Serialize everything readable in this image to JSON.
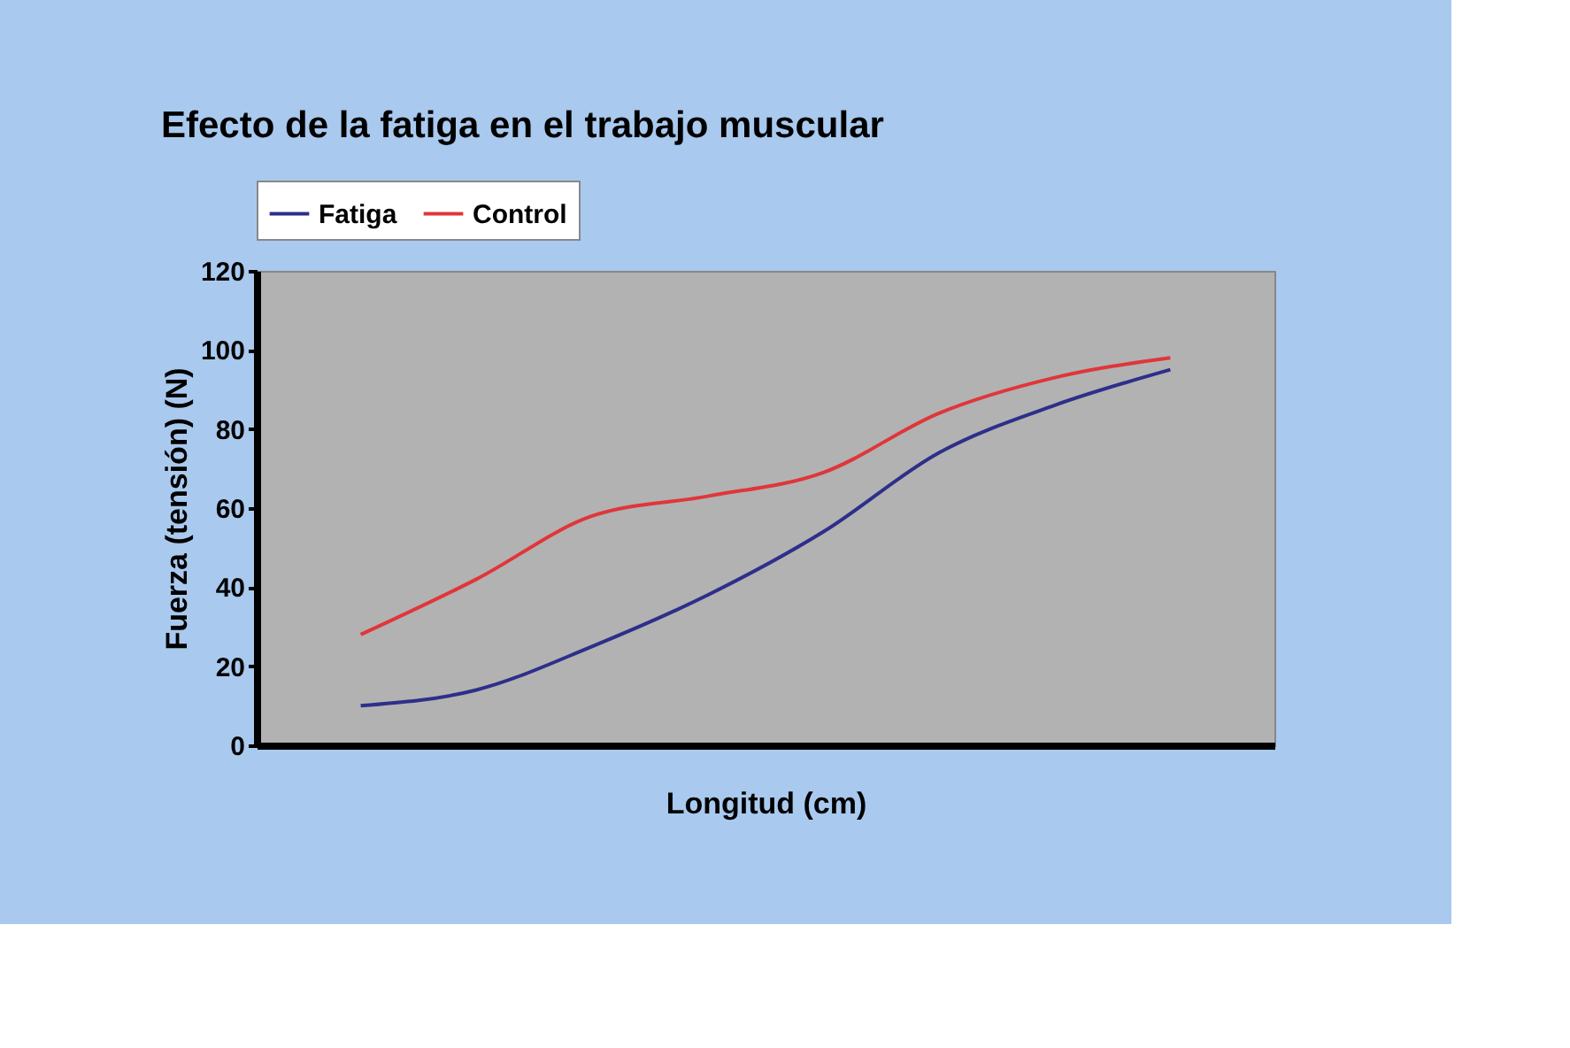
{
  "chart_data": {
    "type": "line",
    "title": "Efecto de la fatiga en el trabajo muscular",
    "xlabel": "Longitud (cm)",
    "ylabel": "Fuerza (tensión) (N)",
    "categories": [
      null,
      null,
      null,
      null,
      null,
      null,
      null,
      null
    ],
    "series": [
      {
        "name": "Fatiga",
        "color": "#2e2f8a",
        "values": [
          10,
          14,
          25,
          38,
          54,
          74,
          86,
          95
        ]
      },
      {
        "name": "Control",
        "color": "#e0363a",
        "values": [
          28,
          42,
          58,
          63,
          69,
          84,
          93,
          98
        ]
      }
    ],
    "ylim": [
      0,
      120
    ],
    "yticks": [
      0,
      20,
      40,
      60,
      80,
      100,
      120
    ],
    "grid": false,
    "legend": "top",
    "marker": "none",
    "line_style": "solid"
  }
}
